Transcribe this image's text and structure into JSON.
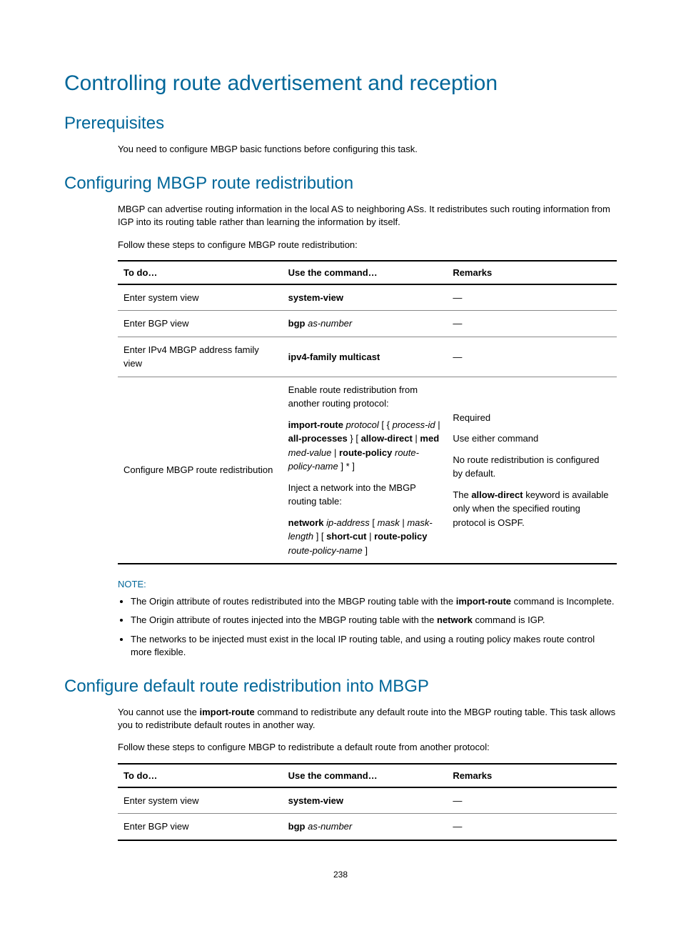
{
  "h1": "Controlling route advertisement and reception",
  "prereq": {
    "heading": "Prerequisites",
    "text": "You need to configure MBGP basic functions before configuring this task."
  },
  "redist": {
    "heading": "Configuring MBGP route redistribution",
    "para": "MBGP can advertise routing information in the local AS to neighboring ASs. It redistributes such routing information from IGP into its routing table rather than learning the information by itself.",
    "lead": "Follow these steps to configure MBGP route redistribution:",
    "table": {
      "headers": {
        "c1": "To do…",
        "c2": "Use the command…",
        "c3": "Remarks"
      },
      "r1": {
        "todo": "Enter system view",
        "cmd": "system-view",
        "rem": "—"
      },
      "r2": {
        "todo": "Enter BGP view",
        "cmd_b": "bgp",
        "cmd_i": " as-number",
        "rem": "—"
      },
      "r3": {
        "todo": "Enter IPv4 MBGP address family view",
        "cmd": "ipv4-family multicast",
        "rem": "—"
      },
      "r4": {
        "todo": "Configure MBGP route redistribution",
        "cmd_line1": "Enable route redistribution from another routing protocol:",
        "cmd_ir_b1": "import-route",
        "cmd_ir_i1": " protocol ",
        "cmd_ir_t1": "[ { ",
        "cmd_ir_i2": "process-id ",
        "cmd_ir_t2": "| ",
        "cmd_ir_b2": "all-processes",
        "cmd_ir_t3": " } [ ",
        "cmd_ir_b3": "allow-direct",
        "cmd_ir_t4": " | ",
        "cmd_ir_b4": "med",
        "cmd_ir_i3": " med-value ",
        "cmd_ir_t5": "| ",
        "cmd_ir_b5": "route-policy",
        "cmd_ir_i4": " route-policy-name ",
        "cmd_ir_t6": "] * ]",
        "cmd_line3": "Inject a network into the MBGP routing table:",
        "cmd_nw_b1": "network",
        "cmd_nw_i1": " ip-address ",
        "cmd_nw_t1": "[ ",
        "cmd_nw_i2": "mask ",
        "cmd_nw_t2": "| ",
        "cmd_nw_i3": "mask-length ",
        "cmd_nw_t3": "] [ ",
        "cmd_nw_b2": "short-cut",
        "cmd_nw_t4": " | ",
        "cmd_nw_b3": "route-policy",
        "cmd_nw_i4": " route-policy-name ",
        "cmd_nw_t5": "]",
        "rem_l1": "Required",
        "rem_l2": "Use either command",
        "rem_l3": "No route redistribution is configured by default.",
        "rem_l4a": "The ",
        "rem_l4b": "allow-direct",
        "rem_l4c": " keyword is available only when the specified routing protocol is OSPF."
      }
    }
  },
  "note": {
    "label": "NOTE:",
    "li1a": "The Origin attribute of routes redistributed into the MBGP routing table with the ",
    "li1b": "import-route",
    "li1c": " command is Incomplete.",
    "li2a": "The Origin attribute of routes injected into the MBGP routing table with the ",
    "li2b": "network",
    "li2c": " command is IGP.",
    "li3": "The networks to be injected must exist in the local IP routing table, and using a routing policy makes route control more flexible."
  },
  "defroute": {
    "heading": "Configure default route redistribution into MBGP",
    "para_a": "You cannot use the ",
    "para_b": "import-route",
    "para_c": " command to redistribute any default route into the MBGP routing table. This task allows you to redistribute default routes in another way.",
    "lead": "Follow these steps to configure MBGP to redistribute a default route from another protocol:",
    "table": {
      "headers": {
        "c1": "To do…",
        "c2": "Use the command…",
        "c3": "Remarks"
      },
      "r1": {
        "todo": "Enter system view",
        "cmd": "system-view",
        "rem": "—"
      },
      "r2": {
        "todo": "Enter BGP view",
        "cmd_b": "bgp",
        "cmd_i": " as-number",
        "rem": "—"
      }
    }
  },
  "page": "238"
}
